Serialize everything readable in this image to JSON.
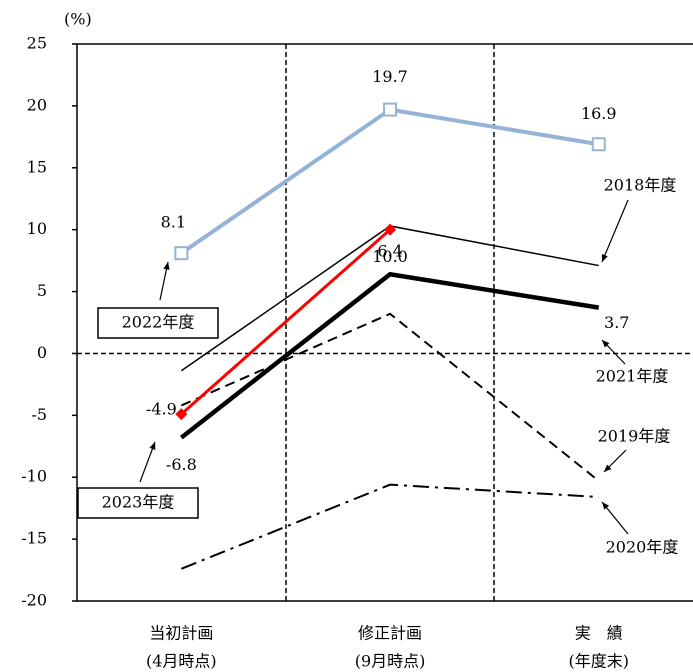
{
  "chart_data": {
    "type": "line",
    "unit_label": "(%)",
    "categories": [
      [
        "当初計画",
        "(4月時点)"
      ],
      [
        "修正計画",
        "(9月時点)"
      ],
      [
        "実　績",
        "(年度末)"
      ]
    ],
    "ylim": [
      -20,
      25
    ],
    "yticks": [
      -20,
      -15,
      -10,
      -5,
      0,
      5,
      10,
      15,
      20,
      25
    ],
    "series": [
      {
        "name": "2022年度",
        "color": "#95b3d7",
        "width": 4,
        "line_style": "solid",
        "marker": "square",
        "values": [
          8.1,
          19.7,
          16.9
        ],
        "value_labels": [
          "8.1",
          "19.7",
          "16.9"
        ]
      },
      {
        "name": "2023年度",
        "color": "#ff0000",
        "width": 3,
        "line_style": "solid",
        "marker": "diamond",
        "values": [
          -4.9,
          10.0,
          null
        ],
        "value_labels": [
          "-4.9",
          "10.0",
          null
        ]
      },
      {
        "name": "2021年度",
        "color": "#000000",
        "width": 4.5,
        "line_style": "solid",
        "values": [
          -6.8,
          6.4,
          3.7
        ],
        "value_labels": [
          "-6.8",
          "6.4",
          "3.7"
        ]
      },
      {
        "name": "2018年度",
        "color": "#000000",
        "width": 1.5,
        "line_style": "solid",
        "values": [
          -1.4,
          10.3,
          7.1
        ]
      },
      {
        "name": "2019年度",
        "color": "#000000",
        "width": 2,
        "line_style": "dashed",
        "values": [
          -4.2,
          3.2,
          -10.3
        ]
      },
      {
        "name": "2020年度",
        "color": "#000000",
        "width": 2,
        "line_style": "dashdot",
        "values": [
          -17.4,
          -10.6,
          -11.6
        ]
      }
    ]
  }
}
